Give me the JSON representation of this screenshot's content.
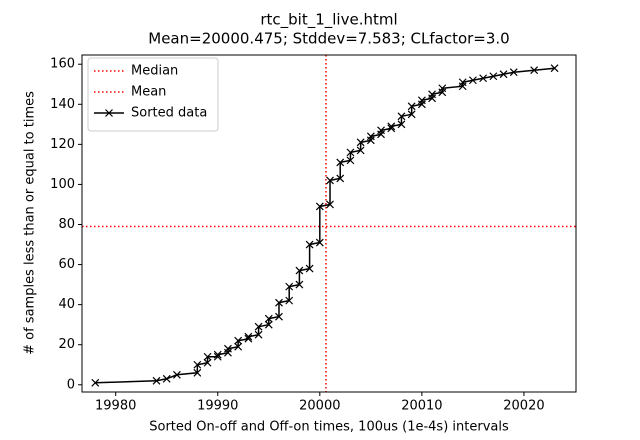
{
  "chart_data": {
    "type": "line",
    "title": "rtc_bit_1_live.html",
    "subtitle": "Mean=20000.475; Stddev=7.583; CLfactor=3.0",
    "x_label": "Sorted On-off and Off-on times, 100us (1e-4s) intervals",
    "y_label": "# of samples less than or equal to times",
    "xlim": [
      19976.7,
      20025.1
    ],
    "ylim": [
      -3.6,
      164.6
    ],
    "xticks": [
      19980,
      19990,
      20000,
      20010,
      20020
    ],
    "yticks": [
      0,
      20,
      40,
      60,
      80,
      100,
      120,
      140,
      160
    ],
    "legend": "upper left",
    "reference_lines": [
      {
        "name": "Median",
        "orientation": "vertical",
        "value": 20000.6,
        "color": "#ff0000"
      },
      {
        "name": "Mean",
        "orientation": "horizontal",
        "value": 79,
        "color": "#ff0000"
      }
    ],
    "series": [
      {
        "name": "Sorted data",
        "color": "#000000",
        "marker": "x",
        "x": [
          19978,
          19984,
          19985,
          19986,
          19988,
          19988,
          19989,
          19989,
          19990,
          19990,
          19991,
          19991,
          19992,
          19992,
          19993,
          19993,
          19994,
          19994,
          19995,
          19995,
          19996,
          19996,
          19997,
          19997,
          19998,
          19998,
          19999,
          19999,
          20000,
          20000,
          20001,
          20001,
          20002,
          20002,
          20003,
          20003,
          20004,
          20004,
          20005,
          20005,
          20006,
          20006,
          20007,
          20007,
          20008,
          20008,
          20009,
          20009,
          20010,
          20010,
          20011,
          20011,
          20012,
          20012,
          20014,
          20014,
          20015,
          20016,
          20017,
          20018,
          20019,
          20021,
          20023
        ],
        "values": [
          1,
          2,
          3,
          5,
          6,
          10,
          11,
          14,
          14,
          15,
          16,
          18,
          19,
          22,
          23,
          24,
          25,
          29,
          30,
          33,
          34,
          41,
          42,
          49,
          50,
          57,
          58,
          70,
          71,
          89,
          90,
          102,
          103,
          111,
          112,
          116,
          117,
          121,
          122,
          124,
          125,
          127,
          128,
          129,
          130,
          134,
          135,
          139,
          140,
          142,
          143,
          145,
          146,
          148,
          149,
          151,
          152,
          153,
          154,
          155,
          156,
          157,
          158
        ]
      }
    ]
  }
}
